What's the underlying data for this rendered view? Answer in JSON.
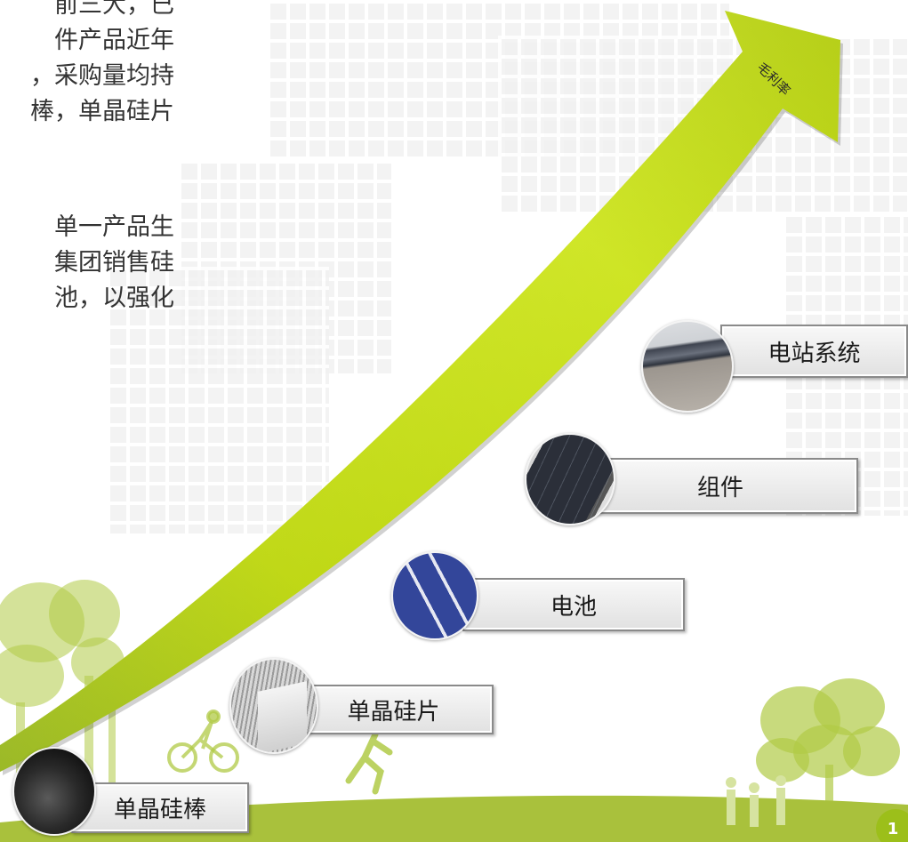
{
  "intro_text": {
    "paragraph_1": [
      "前三大，已",
      "件产品近年",
      "，采购量均持",
      "棒，单晶硅片"
    ],
    "paragraph_2": [
      "单一产品生",
      "集团销售硅",
      "池，以强化"
    ]
  },
  "arrow": {
    "label": "毛利率",
    "icon": "curved-up-arrow"
  },
  "value_chain": [
    {
      "label": "单晶硅棒",
      "image": "silicon-ingot-photo"
    },
    {
      "label": "单晶硅片",
      "image": "silicon-wafer-photo"
    },
    {
      "label": "电池",
      "image": "solar-cell-photo"
    },
    {
      "label": "组件",
      "image": "solar-module-photo"
    },
    {
      "label": "电站系统",
      "image": "solar-power-station-photo"
    }
  ],
  "page_number": "1",
  "colors": {
    "arrow": "#c8e000",
    "ground": "#a9c13c",
    "label_border": "#8a8a8a",
    "page_badge": "#9cbf1a"
  }
}
